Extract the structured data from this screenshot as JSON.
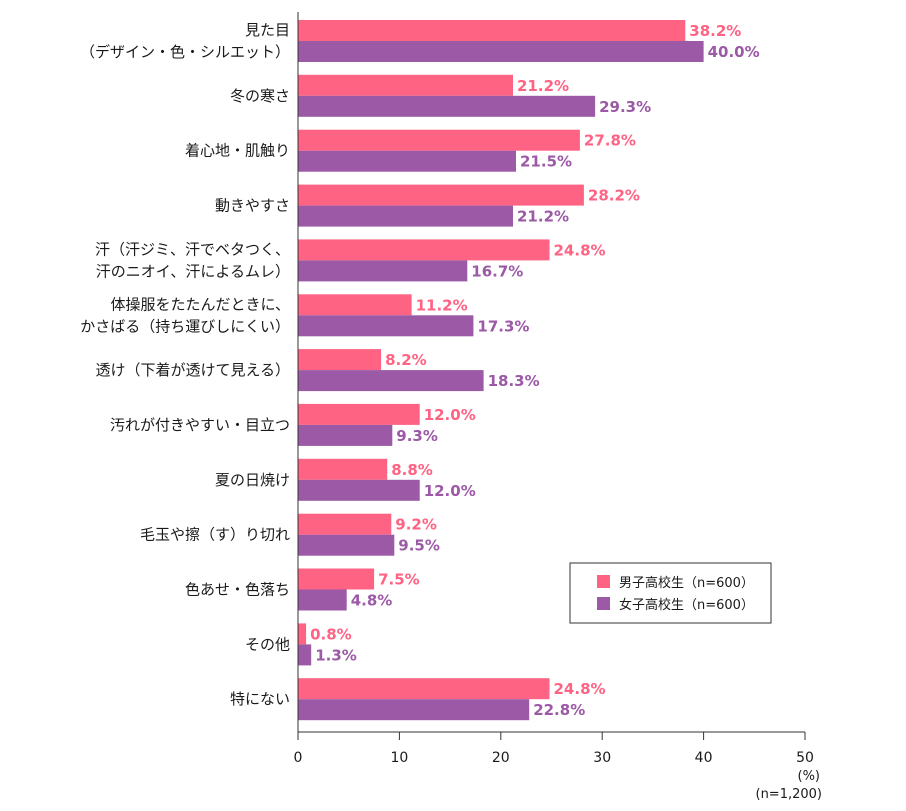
{
  "chart_data": {
    "type": "bar",
    "orientation": "horizontal",
    "categories": [
      [
        "見た目",
        "（デザイン・色・シルエット）"
      ],
      [
        "冬の寒さ"
      ],
      [
        "着心地・肌触り"
      ],
      [
        "動きやすさ"
      ],
      [
        "汗（汗ジミ、汗でベタつく、",
        "汗のニオイ、汗によるムレ）"
      ],
      [
        "体操服をたたんだときに、",
        "かさばる（持ち運びしにくい）"
      ],
      [
        "透け（下着が透けて見える）"
      ],
      [
        "汚れが付きやすい・目立つ"
      ],
      [
        "夏の日焼け"
      ],
      [
        "毛玉や擦（す）り切れ"
      ],
      [
        "色あせ・色落ち"
      ],
      [
        "その他"
      ],
      [
        "特にない"
      ]
    ],
    "series": [
      {
        "name": "男子高校生（n=600）",
        "color": "#ff6384",
        "values": [
          38.2,
          21.2,
          27.8,
          28.2,
          24.8,
          11.2,
          8.2,
          12.0,
          8.8,
          9.2,
          7.5,
          0.8,
          24.8
        ],
        "labels": [
          "38.2%",
          "21.2%",
          "27.8%",
          "28.2%",
          "24.8%",
          "11.2%",
          "8.2%",
          "12.0%",
          "8.8%",
          "9.2%",
          "7.5%",
          "0.8%",
          "24.8%"
        ]
      },
      {
        "name": "女子高校生（n=600）",
        "color": "#9b59a6",
        "values": [
          40.0,
          29.3,
          21.5,
          21.2,
          16.7,
          17.3,
          18.3,
          9.3,
          12.0,
          9.5,
          4.8,
          1.3,
          22.8
        ],
        "labels": [
          "40.0%",
          "29.3%",
          "21.5%",
          "21.2%",
          "16.7%",
          "17.3%",
          "18.3%",
          "9.3%",
          "12.0%",
          "9.5%",
          "4.8%",
          "1.3%",
          "22.8%"
        ]
      }
    ],
    "xlim": [
      0,
      50
    ],
    "xticks": [
      "0",
      "10",
      "20",
      "30",
      "40",
      "50"
    ],
    "unit_label": "(%)",
    "sample_note": "(n=1,200)",
    "legend_position": "lower-right",
    "grid": false
  }
}
